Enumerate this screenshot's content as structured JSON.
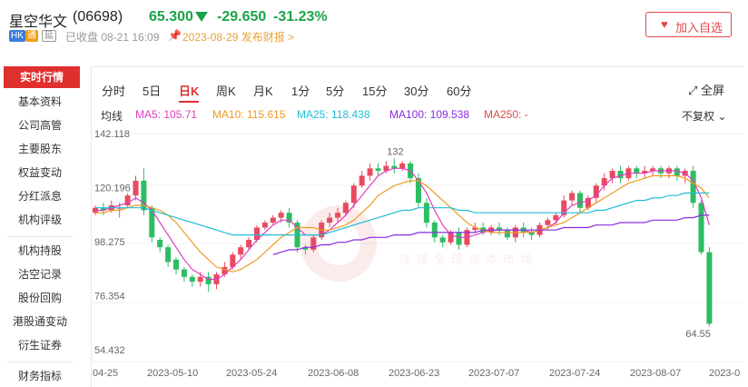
{
  "header": {
    "name": "星空华文",
    "code": "(06698)",
    "price": "65.300",
    "change": "-29.650",
    "change_pct": "-31.23%",
    "badges": {
      "hk": "HK",
      "tong": "通",
      "di": "延"
    },
    "closed_status": "已收盘 08-21 16:09",
    "report": "2023-08-29 发布财报 >",
    "fav_button": "加入自选"
  },
  "sidebar": {
    "items": [
      {
        "label": "实时行情"
      },
      {
        "label": "基本资料"
      },
      {
        "label": "公司高管"
      },
      {
        "label": "主要股东"
      },
      {
        "label": "权益变动"
      },
      {
        "label": "分红派息"
      },
      {
        "label": "机构评级"
      },
      {
        "label": "机构持股"
      },
      {
        "label": "沽空记录"
      },
      {
        "label": "股份回购"
      },
      {
        "label": "港股通变动"
      },
      {
        "label": "衍生证券"
      },
      {
        "label": "财务指标"
      }
    ]
  },
  "chart": {
    "tabs": [
      "分时",
      "5日",
      "日K",
      "周K",
      "月K",
      "1分",
      "5分",
      "15分",
      "30分",
      "60分"
    ],
    "active_tab": "日K",
    "fullscreen": "全屏",
    "ma_label": "均线",
    "ma5": "MA5: 105.71",
    "ma10": "MA10: 115.615",
    "ma25": "MA25: 118.438",
    "ma100": "MA100: 109.538",
    "ma250": "MA250: -",
    "adjust": "不复权",
    "watermark": "连接全球资本市场",
    "colors": {
      "ma5": "#e03cc0",
      "ma10": "#f09a21",
      "ma25": "#23bcd6",
      "ma100": "#8a2be2",
      "ma250": "#e04848",
      "up": "#e84a5f",
      "down": "#2dbd63"
    }
  },
  "chart_data": {
    "type": "candlestick",
    "y_ticks": [
      "142.118",
      "120.196",
      "98.275",
      "76.354",
      "54.432"
    ],
    "x_ticks": [
      "04-25",
      "2023-05-10",
      "2023-05-24",
      "2023-06-08",
      "2023-06-23",
      "2023-07-07",
      "2023-07-24",
      "2023-08-07",
      "2023-0"
    ],
    "max_label": "132",
    "min_label": "64.55",
    "ylim": [
      54.432,
      142.118
    ],
    "candles": [
      [
        110,
        112,
        109,
        113
      ],
      [
        112,
        111,
        109,
        114
      ],
      [
        111,
        113,
        110,
        115
      ],
      [
        112,
        112,
        108,
        114
      ],
      [
        113,
        117,
        112,
        118
      ],
      [
        117,
        123,
        115,
        125
      ],
      [
        123,
        111,
        109,
        128
      ],
      [
        112,
        100,
        98,
        113
      ],
      [
        99,
        96,
        94,
        100
      ],
      [
        96,
        90,
        88,
        97
      ],
      [
        91,
        87,
        85,
        92
      ],
      [
        87,
        84,
        82,
        88
      ],
      [
        84,
        82,
        80,
        85
      ],
      [
        82,
        84,
        80,
        86
      ],
      [
        84,
        81,
        78,
        86
      ],
      [
        81,
        85,
        79,
        86
      ],
      [
        85,
        88,
        84,
        90
      ],
      [
        88,
        93,
        87,
        94
      ],
      [
        93,
        96,
        91,
        97
      ],
      [
        96,
        99,
        95,
        100
      ],
      [
        99,
        104,
        98,
        105
      ],
      [
        104,
        106,
        103,
        107
      ],
      [
        106,
        108,
        105,
        109
      ],
      [
        108,
        110,
        106,
        111
      ],
      [
        110,
        106,
        104,
        112
      ],
      [
        106,
        96,
        94,
        107
      ],
      [
        96,
        95,
        93,
        97
      ],
      [
        95,
        100,
        94,
        101
      ],
      [
        100,
        106,
        99,
        107
      ],
      [
        106,
        108,
        104,
        110
      ],
      [
        108,
        110,
        106,
        112
      ],
      [
        110,
        114,
        109,
        115
      ],
      [
        114,
        121,
        112,
        122
      ],
      [
        121,
        125,
        120,
        127
      ],
      [
        125,
        128,
        123,
        130
      ],
      [
        128,
        127,
        125,
        130
      ],
      [
        127,
        129,
        126,
        131
      ],
      [
        129,
        128,
        126,
        132
      ],
      [
        128,
        130,
        127,
        131
      ],
      [
        130,
        124,
        122,
        131
      ],
      [
        124,
        114,
        112,
        126
      ],
      [
        114,
        106,
        104,
        116
      ],
      [
        106,
        100,
        98,
        107
      ],
      [
        100,
        98,
        96,
        101
      ],
      [
        98,
        102,
        97,
        103
      ],
      [
        102,
        97,
        95,
        104
      ],
      [
        97,
        103,
        96,
        104
      ],
      [
        103,
        104,
        102,
        106
      ],
      [
        104,
        102,
        101,
        106
      ],
      [
        102,
        104,
        101,
        105
      ],
      [
        104,
        103,
        101,
        106
      ],
      [
        103,
        100,
        99,
        104
      ],
      [
        100,
        104,
        98,
        105
      ],
      [
        104,
        102,
        100,
        106
      ],
      [
        102,
        101,
        99,
        104
      ],
      [
        101,
        105,
        100,
        106
      ],
      [
        105,
        107,
        103,
        108
      ],
      [
        107,
        109,
        105,
        110
      ],
      [
        109,
        115,
        108,
        117
      ],
      [
        115,
        118,
        113,
        119
      ],
      [
        118,
        112,
        110,
        119
      ],
      [
        112,
        116,
        111,
        117
      ],
      [
        116,
        121,
        114,
        122
      ],
      [
        121,
        124,
        119,
        126
      ],
      [
        124,
        127,
        122,
        128
      ],
      [
        127,
        124,
        122,
        129
      ],
      [
        124,
        128,
        123,
        129
      ],
      [
        128,
        126,
        124,
        129
      ],
      [
        126,
        127,
        124,
        129
      ],
      [
        127,
        128,
        125,
        129
      ],
      [
        128,
        126,
        124,
        129
      ],
      [
        126,
        128,
        124,
        129
      ],
      [
        128,
        125,
        123,
        129
      ],
      [
        125,
        127,
        122,
        128
      ],
      [
        127,
        114,
        112,
        129
      ],
      [
        114,
        94,
        93,
        115
      ],
      [
        94,
        65,
        64,
        96
      ]
    ],
    "ma5": [
      111,
      111,
      112,
      113,
      114,
      116,
      114,
      111,
      106,
      101,
      96,
      91,
      87,
      85,
      83,
      83,
      85,
      88,
      91,
      95,
      99,
      102,
      105,
      107,
      107,
      104,
      101,
      101,
      101,
      103,
      106,
      109,
      113,
      117,
      121,
      125,
      127,
      128,
      128,
      127,
      123,
      118,
      111,
      105,
      101,
      100,
      100,
      101,
      102,
      103,
      103,
      103,
      103,
      103,
      102,
      103,
      104,
      106,
      110,
      113,
      114,
      115,
      117,
      121,
      124,
      125,
      126,
      126,
      126,
      127,
      127,
      127,
      127,
      126,
      123,
      116,
      105
    ],
    "ma10": [
      110,
      110,
      111,
      111,
      112,
      113,
      113,
      112,
      111,
      109,
      106,
      102,
      98,
      94,
      91,
      88,
      87,
      86,
      87,
      89,
      91,
      94,
      97,
      100,
      102,
      104,
      104,
      104,
      103,
      103,
      104,
      105,
      107,
      110,
      113,
      117,
      119,
      121,
      122,
      123,
      123,
      121,
      118,
      115,
      112,
      109,
      106,
      104,
      103,
      102,
      102,
      102,
      102,
      102,
      102,
      103,
      104,
      105,
      106,
      108,
      110,
      112,
      114,
      116,
      118,
      120,
      122,
      123,
      124,
      125,
      125,
      125,
      125,
      124,
      122,
      120,
      116
    ],
    "ma25": [
      112,
      112,
      112,
      112,
      112,
      112,
      112,
      111,
      110,
      109,
      108,
      107,
      106,
      105,
      104,
      103,
      102,
      101,
      101,
      101,
      101,
      101,
      101,
      101,
      101,
      101,
      101,
      101,
      101,
      102,
      103,
      104,
      105,
      106,
      107,
      108,
      109,
      110,
      111,
      111,
      112,
      112,
      112,
      112,
      112,
      111,
      111,
      110,
      110,
      110,
      110,
      110,
      110,
      110,
      110,
      110,
      110,
      110,
      110,
      110,
      110,
      110,
      111,
      111,
      112,
      113,
      114,
      115,
      115,
      116,
      116,
      117,
      117,
      118,
      118,
      118,
      118
    ],
    "ma100": [
      null,
      null,
      null,
      null,
      null,
      null,
      null,
      null,
      null,
      null,
      null,
      null,
      null,
      null,
      null,
      null,
      null,
      null,
      null,
      null,
      null,
      null,
      93,
      94,
      95,
      95,
      96,
      96,
      97,
      97,
      98,
      98,
      99,
      99,
      100,
      100,
      100,
      101,
      101,
      101,
      102,
      102,
      102,
      102,
      102,
      102,
      102,
      102,
      103,
      103,
      103,
      103,
      103,
      103,
      103,
      103,
      103,
      103,
      104,
      104,
      104,
      104,
      105,
      105,
      105,
      106,
      106,
      106,
      106,
      107,
      107,
      107,
      107,
      108,
      108,
      109,
      109
    ]
  }
}
